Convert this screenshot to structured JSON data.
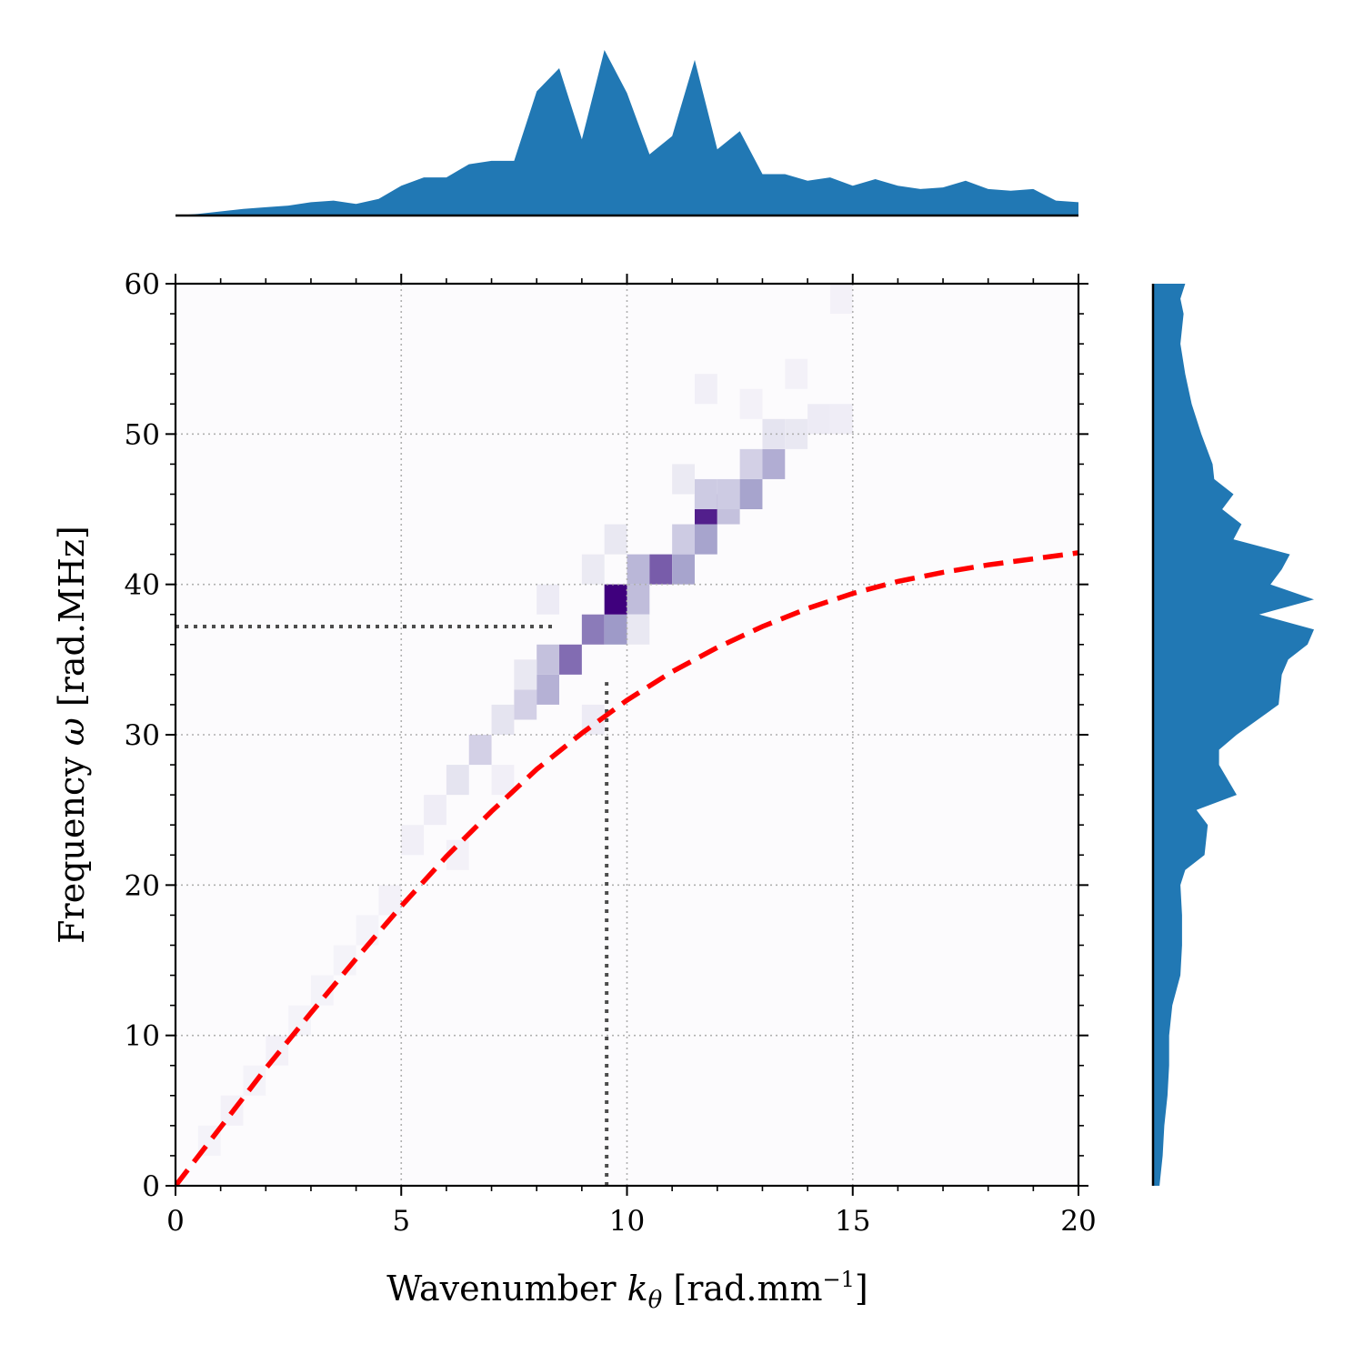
{
  "chart_data": {
    "type": "heatmap",
    "xlabel": {
      "main": "Wavenumber ",
      "sym": "k",
      "sub": "θ",
      "unit": " [rad.mm",
      "sup": "−1",
      "close": "]"
    },
    "ylabel": {
      "main": "Frequency ",
      "sym": "ω",
      "unit": " [rad.MHz]"
    },
    "xlim": [
      0,
      20
    ],
    "ylim": [
      0,
      60
    ],
    "xticks": [
      0,
      5,
      10,
      15,
      20
    ],
    "yticks": [
      0,
      10,
      20,
      30,
      40,
      50,
      60
    ],
    "xtick_labels": [
      "0",
      "5",
      "10",
      "15",
      "20"
    ],
    "ytick_labels": [
      "0",
      "10",
      "20",
      "30",
      "40",
      "50",
      "60"
    ],
    "grid": true,
    "colormap": "Purples",
    "bin_width_x": 0.5,
    "bin_height_y": 2,
    "cells": [
      [
        0.5,
        2,
        0.04
      ],
      [
        1.0,
        4,
        0.05
      ],
      [
        1.5,
        6,
        0.04
      ],
      [
        2.0,
        8,
        0.05
      ],
      [
        2.5,
        10,
        0.04
      ],
      [
        3.0,
        12,
        0.04
      ],
      [
        3.5,
        14,
        0.04
      ],
      [
        4.0,
        16,
        0.04
      ],
      [
        4.5,
        18,
        0.05
      ],
      [
        5.0,
        22,
        0.06
      ],
      [
        5.5,
        24,
        0.07
      ],
      [
        6.0,
        26,
        0.12
      ],
      [
        6.5,
        28,
        0.22
      ],
      [
        7.0,
        30,
        0.12
      ],
      [
        7.5,
        31,
        0.22
      ],
      [
        8.0,
        32,
        0.38
      ],
      [
        8.5,
        34,
        0.65
      ],
      [
        8.0,
        34,
        0.3
      ],
      [
        9.0,
        36,
        0.6
      ],
      [
        9.5,
        36,
        0.5
      ],
      [
        9.5,
        38,
        1.0
      ],
      [
        10.0,
        38,
        0.32
      ],
      [
        10.0,
        40,
        0.35
      ],
      [
        10.5,
        40,
        0.7
      ],
      [
        11.0,
        40,
        0.45
      ],
      [
        11.0,
        42,
        0.25
      ],
      [
        11.5,
        42,
        0.45
      ],
      [
        11.5,
        44,
        0.9
      ],
      [
        11.5,
        45,
        0.25
      ],
      [
        12.0,
        44,
        0.3
      ],
      [
        12.0,
        45,
        0.25
      ],
      [
        12.5,
        45,
        0.45
      ],
      [
        12.5,
        47,
        0.22
      ],
      [
        13.0,
        47,
        0.4
      ],
      [
        13.0,
        49,
        0.12
      ],
      [
        13.5,
        49,
        0.1
      ],
      [
        14.0,
        50,
        0.08
      ],
      [
        14.5,
        50,
        0.07
      ],
      [
        9.0,
        30,
        0.08
      ],
      [
        8.0,
        38,
        0.08
      ],
      [
        10.0,
        36,
        0.1
      ],
      [
        9.0,
        40,
        0.09
      ],
      [
        9.5,
        42,
        0.1
      ],
      [
        11.0,
        46,
        0.09
      ],
      [
        11.5,
        52,
        0.06
      ],
      [
        12.5,
        51,
        0.05
      ],
      [
        13.5,
        53,
        0.05
      ],
      [
        14.5,
        58,
        0.05
      ],
      [
        7.5,
        33,
        0.1
      ],
      [
        7.0,
        26,
        0.06
      ],
      [
        6.0,
        21,
        0.05
      ]
    ],
    "dispersion_curve": {
      "style": "red dashed",
      "points": [
        [
          0,
          0
        ],
        [
          1,
          3.9
        ],
        [
          2,
          7.8
        ],
        [
          3,
          11.5
        ],
        [
          4,
          15.1
        ],
        [
          5,
          18.6
        ],
        [
          6,
          21.9
        ],
        [
          7,
          24.9
        ],
        [
          8,
          27.7
        ],
        [
          9,
          30.1
        ],
        [
          10,
          32.3
        ],
        [
          11,
          34.2
        ],
        [
          12,
          35.8
        ],
        [
          13,
          37.2
        ],
        [
          14,
          38.4
        ],
        [
          15,
          39.4
        ],
        [
          16,
          40.2
        ],
        [
          17,
          40.8
        ],
        [
          18,
          41.3
        ],
        [
          19,
          41.7
        ],
        [
          20,
          42.1
        ]
      ]
    },
    "marker_lines": {
      "horizontal": {
        "y": 37.2,
        "x_from": 0,
        "x_to": 8.4
      },
      "vertical": {
        "x": 9.55,
        "y_from": 0,
        "y_to": 33.5
      }
    },
    "top_marginal": {
      "x": [
        0,
        0.5,
        1.5,
        2,
        2.5,
        3,
        3.5,
        4,
        4.5,
        5,
        5.5,
        6,
        6.5,
        7,
        7.5,
        8,
        8.5,
        9,
        9.5,
        10,
        10.5,
        11,
        11.5,
        12,
        12.5,
        13,
        13.5,
        14,
        14.5,
        15,
        15.5,
        16,
        16.5,
        17,
        17.5,
        18,
        18.5,
        19,
        19.5,
        20
      ],
      "values": [
        0.0,
        0.01,
        0.04,
        0.05,
        0.06,
        0.08,
        0.09,
        0.07,
        0.1,
        0.18,
        0.23,
        0.23,
        0.31,
        0.33,
        0.33,
        0.75,
        0.89,
        0.46,
        1.0,
        0.74,
        0.37,
        0.48,
        0.94,
        0.4,
        0.51,
        0.25,
        0.25,
        0.21,
        0.23,
        0.18,
        0.22,
        0.18,
        0.16,
        0.17,
        0.21,
        0.16,
        0.15,
        0.16,
        0.09,
        0.08
      ]
    },
    "right_marginal": {
      "y": [
        0,
        2,
        4,
        6,
        8,
        10,
        12,
        14,
        16,
        18,
        20,
        21,
        22,
        24,
        25,
        26,
        28,
        29,
        30,
        32,
        34,
        35,
        36,
        37,
        38,
        39,
        40,
        41,
        42,
        43,
        44,
        45,
        46,
        47,
        48,
        50,
        52,
        54,
        56,
        58,
        59,
        60
      ],
      "values": [
        0.04,
        0.06,
        0.07,
        0.09,
        0.1,
        0.1,
        0.12,
        0.17,
        0.18,
        0.18,
        0.17,
        0.2,
        0.32,
        0.34,
        0.27,
        0.52,
        0.41,
        0.41,
        0.52,
        0.78,
        0.8,
        0.84,
        0.96,
        1.0,
        0.66,
        1.0,
        0.73,
        0.8,
        0.85,
        0.5,
        0.55,
        0.43,
        0.5,
        0.38,
        0.37,
        0.3,
        0.24,
        0.2,
        0.17,
        0.19,
        0.17,
        0.2
      ]
    },
    "marginal_color": "#2178b4",
    "curve_color": "#ff0000",
    "marker_line_color": "#4d4d4d"
  }
}
